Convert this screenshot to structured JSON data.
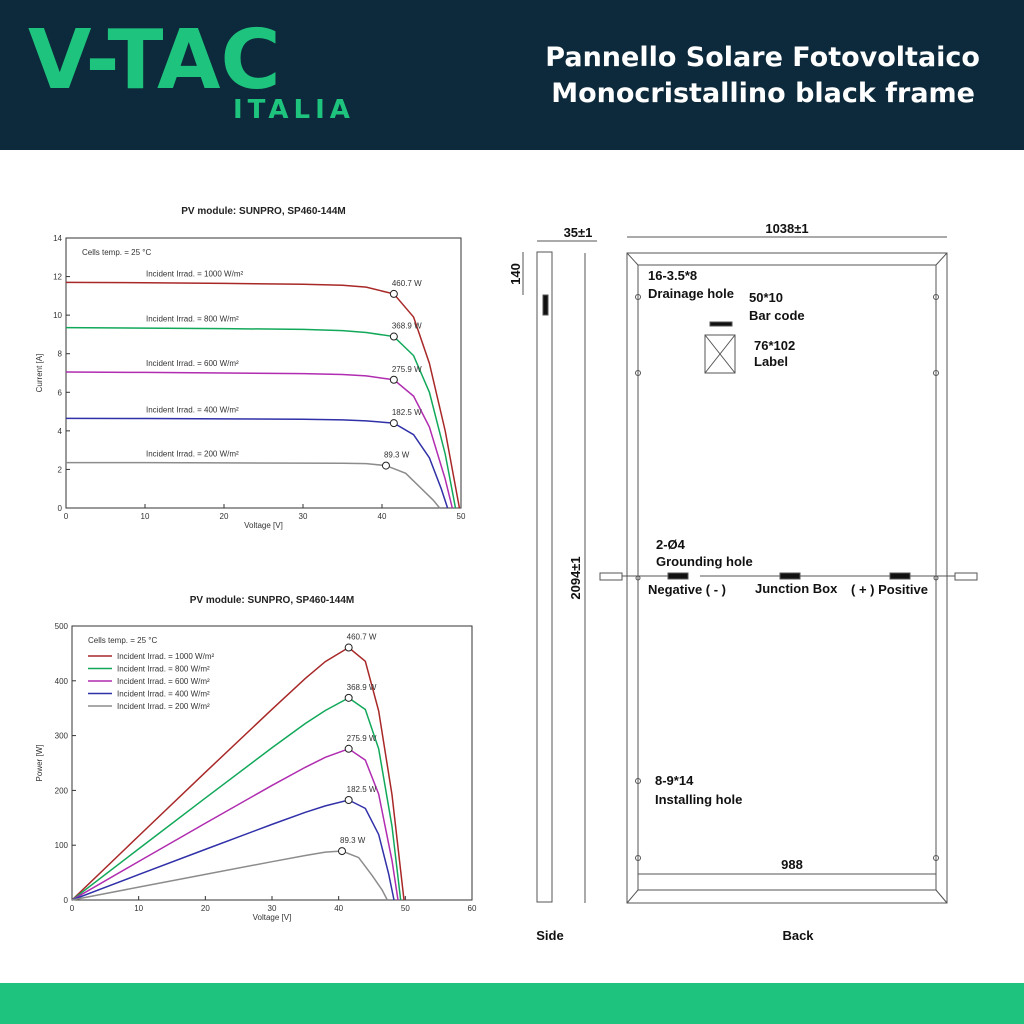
{
  "header": {
    "logo": "V-TAC",
    "logo_sub": "ITALIA",
    "title_lines": [
      "Pannello Solare Fotovoltaico",
      "Monocristallino black frame"
    ]
  },
  "chart_data": [
    {
      "type": "line",
      "title": "PV module:  SUNPRO,  SP460-144M",
      "annotation": "Cells temp. = 25 °C",
      "x_label": "Voltage [V]",
      "y_label": "Current [A]",
      "xlim": [
        0,
        50
      ],
      "xticks": [
        0,
        10,
        20,
        30,
        40,
        50
      ],
      "ylim": [
        0,
        14
      ],
      "yticks": [
        0,
        2,
        4,
        6,
        8,
        10,
        12,
        14
      ],
      "legend": false,
      "series": [
        {
          "name": "Incident Irrad. = 1000 W/m²",
          "color": "#a82828",
          "x": [
            0,
            10,
            20,
            30,
            35,
            38,
            41.5,
            44,
            46,
            48,
            49.8
          ],
          "values": [
            11.7,
            11.68,
            11.65,
            11.6,
            11.55,
            11.45,
            11.1,
            9.9,
            7.5,
            4.0,
            0
          ],
          "mpp": {
            "x": 41.5,
            "y": 11.1,
            "label": "460.7 W"
          }
        },
        {
          "name": "Incident Irrad. = 800 W/m²",
          "color": "#12a85a",
          "x": [
            0,
            10,
            20,
            30,
            35,
            38,
            41.5,
            44,
            46,
            48,
            49.3
          ],
          "values": [
            9.35,
            9.33,
            9.3,
            9.26,
            9.2,
            9.1,
            8.89,
            7.9,
            6.0,
            2.8,
            0
          ],
          "mpp": {
            "x": 41.5,
            "y": 8.89,
            "label": "368.9 W"
          }
        },
        {
          "name": "Incident Irrad. = 600 W/m²",
          "color": "#b02cb0",
          "x": [
            0,
            10,
            20,
            30,
            35,
            38,
            41.5,
            44,
            46,
            48,
            48.9
          ],
          "values": [
            7.05,
            7.03,
            7.0,
            6.97,
            6.92,
            6.85,
            6.65,
            5.8,
            4.2,
            1.5,
            0
          ],
          "mpp": {
            "x": 41.5,
            "y": 6.65,
            "label": "275.9 W"
          }
        },
        {
          "name": "Incident Irrad. = 400 W/m²",
          "color": "#3030a8",
          "x": [
            0,
            10,
            20,
            30,
            35,
            38,
            41.5,
            44,
            46,
            47.5,
            48.3
          ],
          "values": [
            4.65,
            4.64,
            4.62,
            4.6,
            4.57,
            4.52,
            4.4,
            3.8,
            2.6,
            1.0,
            0
          ],
          "mpp": {
            "x": 41.5,
            "y": 4.4,
            "label": "182.5 W"
          }
        },
        {
          "name": "Incident Irrad. = 200 W/m²",
          "color": "#8c8c8c",
          "x": [
            0,
            10,
            20,
            30,
            35,
            38,
            40.5,
            43,
            45,
            46.5,
            47.3
          ],
          "values": [
            2.35,
            2.35,
            2.34,
            2.33,
            2.32,
            2.3,
            2.2,
            1.8,
            1.0,
            0.4,
            0
          ],
          "mpp": {
            "x": 40.5,
            "y": 2.2,
            "label": "89.3 W"
          }
        }
      ]
    },
    {
      "type": "line",
      "title": "PV module:  SUNPRO,  SP460-144M",
      "annotation": "Cells temp. = 25 °C",
      "x_label": "Voltage [V]",
      "y_label": "Power [W]",
      "xlim": [
        0,
        60
      ],
      "xticks": [
        0,
        10,
        20,
        30,
        40,
        50,
        60
      ],
      "ylim": [
        0,
        500
      ],
      "yticks": [
        0,
        100,
        200,
        300,
        400,
        500
      ],
      "legend": "top-left",
      "series": [
        {
          "name": "Incident Irrad. = 1000 W/m²",
          "color": "#a82828",
          "x": [
            0,
            10,
            20,
            30,
            35,
            38,
            41.5,
            44,
            46,
            48,
            49.8
          ],
          "values": [
            0,
            116.8,
            233,
            348,
            404.3,
            435.1,
            460.7,
            435.6,
            345,
            192,
            0
          ],
          "mpp": {
            "x": 41.5,
            "y": 460.7,
            "label": "460.7 W"
          }
        },
        {
          "name": "Incident Irrad. = 800 W/m²",
          "color": "#12a85a",
          "x": [
            0,
            10,
            20,
            30,
            35,
            38,
            41.5,
            44,
            46,
            48,
            49.3
          ],
          "values": [
            0,
            93.3,
            186,
            277.8,
            322,
            345.8,
            368.9,
            347.6,
            276,
            134.4,
            0
          ],
          "mpp": {
            "x": 41.5,
            "y": 368.9,
            "label": "368.9 W"
          }
        },
        {
          "name": "Incident Irrad. = 600 W/m²",
          "color": "#b02cb0",
          "x": [
            0,
            10,
            20,
            30,
            35,
            38,
            41.5,
            44,
            46,
            48,
            48.9
          ],
          "values": [
            0,
            70.3,
            140,
            209.1,
            242.2,
            260.3,
            275.9,
            255.2,
            193.2,
            72,
            0
          ],
          "mpp": {
            "x": 41.5,
            "y": 275.9,
            "label": "275.9 W"
          }
        },
        {
          "name": "Incident Irrad. = 400 W/m²",
          "color": "#3030a8",
          "x": [
            0,
            10,
            20,
            30,
            35,
            38,
            41.5,
            44,
            46,
            47.5,
            48.3
          ],
          "values": [
            0,
            46.4,
            92.4,
            138,
            160,
            171.8,
            182.5,
            167.2,
            119.6,
            47.5,
            0
          ],
          "mpp": {
            "x": 41.5,
            "y": 182.5,
            "label": "182.5 W"
          }
        },
        {
          "name": "Incident Irrad. = 200 W/m²",
          "color": "#8c8c8c",
          "x": [
            0,
            10,
            20,
            30,
            35,
            38,
            40.5,
            43,
            45,
            46.5,
            47.3
          ],
          "values": [
            0,
            23.5,
            46.8,
            69.9,
            81.2,
            87.4,
            89.3,
            77.4,
            45,
            18.6,
            0
          ],
          "mpp": {
            "x": 40.5,
            "y": 89.3,
            "label": "89.3 W"
          }
        }
      ]
    }
  ],
  "drawing": {
    "side_width": "35±1",
    "side_height": "140",
    "panel_width": "1038±1",
    "panel_height": "2094±1",
    "inner_width": "988",
    "drainage": [
      "16-3.5*8",
      "Drainage hole"
    ],
    "barcode": [
      "50*10",
      "Bar code"
    ],
    "label": [
      "76*102",
      "Label"
    ],
    "grounding": [
      "2-Ø4",
      "Grounding hole"
    ],
    "negative": "Negative ( - )",
    "junction": "Junction Box",
    "positive": "( + ) Positive",
    "installing": [
      "8-9*14",
      "Installing hole"
    ],
    "side_caption": "Side",
    "back_caption": "Back"
  }
}
